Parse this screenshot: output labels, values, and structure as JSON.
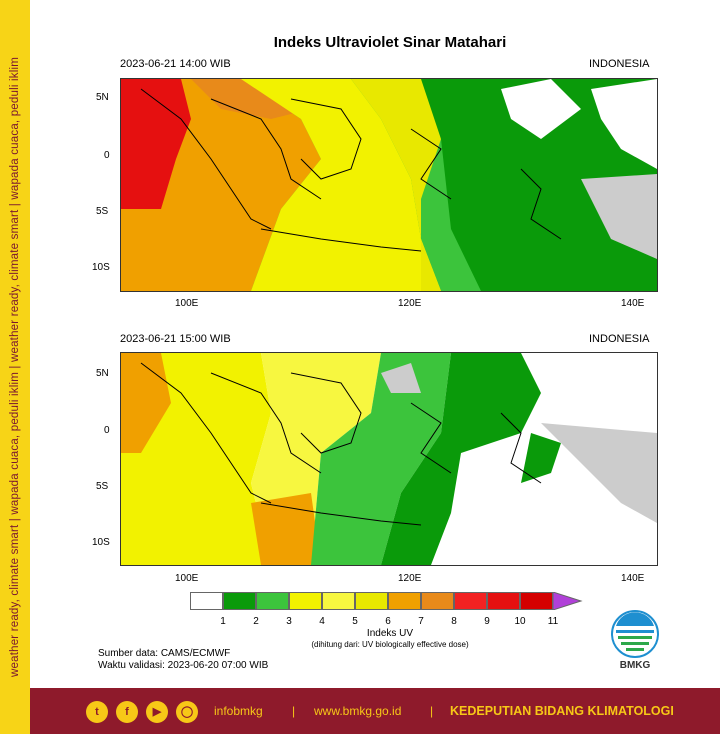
{
  "side_text": "weather ready, climate smart  |  wapada cuaca, peduli iklim  |  weather ready, climate smart  |  wapada cuaca, peduli iklim",
  "title": "Indeks Ultraviolet Sinar Matahari",
  "panels": [
    {
      "datetime": "2023-06-21   14:00 WIB",
      "region": "INDONESIA"
    },
    {
      "datetime": "2023-06-21   15:00 WIB",
      "region": "INDONESIA"
    }
  ],
  "lat_ticks": [
    "5N",
    "0",
    "5S",
    "10S"
  ],
  "lon_ticks": [
    "100E",
    "120E",
    "140E"
  ],
  "colorbar": {
    "colors": [
      "#ffffff",
      "#0a9a0a",
      "#3cc43c",
      "#f2f200",
      "#f7f740",
      "#e8e800",
      "#f0a000",
      "#e88a1a",
      "#f22222",
      "#e51010",
      "#d40000",
      "#b040d8"
    ],
    "labels": [
      "1",
      "2",
      "3",
      "4",
      "5",
      "6",
      "7",
      "8",
      "9",
      "10",
      "11"
    ],
    "title": "Indeks UV",
    "subtitle": "(dihitung dari: UV biologically effective dose)"
  },
  "source": "Sumber data: CAMS/ECMWF",
  "validity": "Waktu validasi: 2023-06-20 07:00 WIB",
  "logo_text": "BMKG",
  "footer": {
    "handle": "infobmkg",
    "sep1": "|",
    "website": "www.bmkg.go.id",
    "sep2": "|",
    "org": "KEDEPUTIAN BIDANG KLIMATOLOGI"
  }
}
